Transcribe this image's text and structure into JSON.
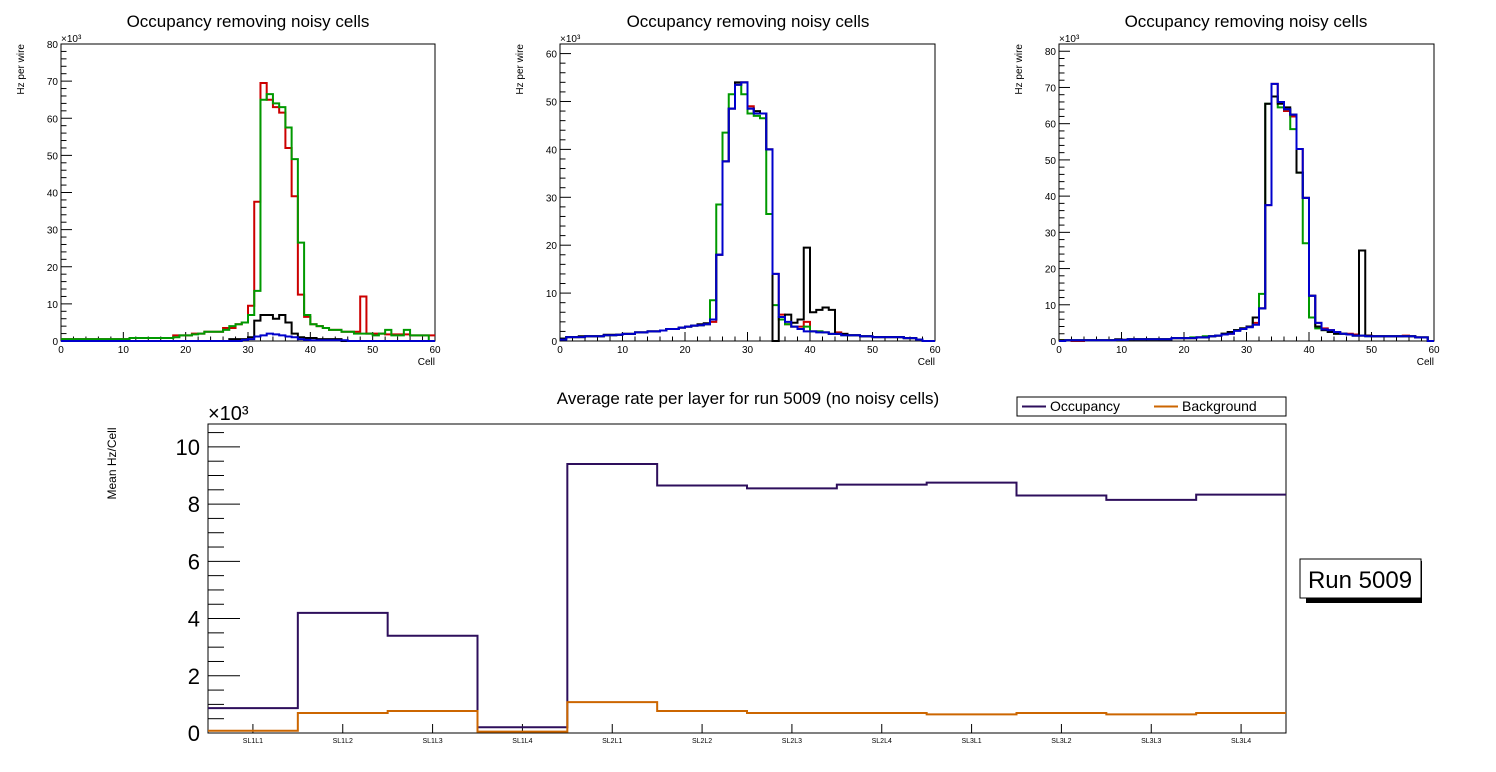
{
  "colors": {
    "red": "#cc0000",
    "green": "#009900",
    "blue": "#0000cc",
    "black": "#000000",
    "occupancy": "#2e0f5c",
    "background": "#cc6600"
  },
  "chart_data": [
    {
      "type": "line",
      "style": "step-histogram",
      "title": "Occupancy removing noisy cells",
      "xlabel": "Cell",
      "ylabel": "Hz per wire",
      "y_multiplier_label": "×10³",
      "xlim": [
        0,
        60
      ],
      "ylim": [
        0,
        80
      ],
      "xticks": [
        "0",
        "10",
        "20",
        "30",
        "40",
        "50",
        "60"
      ],
      "yticks": [
        "0",
        "10",
        "20",
        "30",
        "40",
        "50",
        "60",
        "70",
        "80"
      ],
      "units_note": "values in thousands (x10^3)",
      "series": [
        {
          "name": "red",
          "color": "red",
          "values": [
            0.5,
            0.5,
            0.5,
            0.5,
            0.5,
            0.5,
            0.5,
            0.5,
            0.5,
            0.5,
            0.5,
            0.8,
            0.8,
            0.8,
            0.8,
            0.8,
            0.8,
            0.8,
            1.5,
            1.5,
            1.5,
            2,
            2,
            2.5,
            2.5,
            2.5,
            3.5,
            3.5,
            4.5,
            5,
            9.5,
            37.5,
            69.5,
            65,
            63,
            61.5,
            52,
            39,
            12.5,
            6.5,
            4.5,
            4,
            3.5,
            3,
            3,
            2.5,
            2.5,
            2.5,
            12,
            2,
            2,
            2,
            1.8,
            1.8,
            1.8,
            1.8,
            1.5,
            1.5,
            1.5,
            1.5
          ]
        },
        {
          "name": "green",
          "color": "green",
          "values": [
            0.5,
            0.5,
            0.5,
            0.5,
            0.5,
            0.5,
            0.5,
            0.5,
            0.5,
            0.5,
            0.5,
            0.8,
            0.8,
            0.8,
            0.8,
            0.8,
            0.8,
            0.8,
            1,
            1.5,
            1.5,
            1.8,
            2,
            2.5,
            2.5,
            2.5,
            3,
            4,
            4.5,
            5,
            7,
            13.5,
            65,
            66.5,
            64,
            63,
            57.5,
            49,
            26.5,
            7,
            4.5,
            4,
            3.5,
            3,
            3,
            2.5,
            2.5,
            2,
            2,
            2,
            1.5,
            2,
            3,
            1.5,
            1.5,
            3,
            1.5,
            1.5,
            1.5,
            0
          ]
        },
        {
          "name": "black",
          "color": "black",
          "values": [
            0,
            0,
            0,
            0,
            0,
            0,
            0,
            0,
            0,
            0,
            0,
            0,
            0,
            0,
            0,
            0,
            0,
            0,
            0,
            0,
            0,
            0,
            0,
            0,
            0,
            0,
            0,
            0.5,
            0.5,
            0.5,
            1,
            5.5,
            7,
            7,
            6,
            7,
            5,
            2,
            1,
            0.8,
            0.8,
            0.5,
            0.5,
            0.5,
            0.5,
            0,
            0,
            0,
            0,
            0,
            0,
            0,
            0,
            0,
            0,
            0,
            0,
            0,
            0,
            0
          ]
        },
        {
          "name": "blue",
          "color": "blue",
          "values": [
            0,
            0,
            0,
            0,
            0,
            0,
            0,
            0,
            0,
            0,
            0,
            0,
            0,
            0,
            0,
            0,
            0,
            0,
            0,
            0,
            0,
            0,
            0,
            0,
            0,
            0,
            0,
            0,
            0,
            0.3,
            0.5,
            1.2,
            1.5,
            2,
            1.8,
            1.5,
            1.2,
            1,
            0.5,
            0.3,
            0.2,
            0.2,
            0.2,
            0.2,
            0.2,
            0.2,
            0,
            0,
            0,
            0,
            0,
            0,
            0,
            0,
            0,
            0,
            0,
            0,
            0,
            0
          ]
        }
      ]
    },
    {
      "type": "line",
      "style": "step-histogram",
      "title": "Occupancy removing noisy cells",
      "xlabel": "Cell",
      "ylabel": "Hz per wire",
      "y_multiplier_label": "×10³",
      "xlim": [
        0,
        60
      ],
      "ylim": [
        0,
        62
      ],
      "xticks": [
        "0",
        "10",
        "20",
        "30",
        "40",
        "50",
        "60"
      ],
      "yticks": [
        "0",
        "10",
        "20",
        "30",
        "40",
        "50",
        "60"
      ],
      "units_note": "values in thousands (x10^3)",
      "series": [
        {
          "name": "red",
          "color": "red",
          "values": [
            0.5,
            0.8,
            0.8,
            0.8,
            1,
            1,
            1,
            1.2,
            1.2,
            1.3,
            1.5,
            1.5,
            1.8,
            1.8,
            2,
            2,
            2.2,
            2.5,
            2.5,
            2.8,
            3,
            3.2,
            3.3,
            3.5,
            4,
            18,
            37.5,
            48.5,
            53.5,
            54,
            49,
            47.5,
            47.5,
            40,
            14,
            5.5,
            3.5,
            3,
            3,
            4,
            2,
            2,
            1.8,
            1.5,
            1.8,
            1.5,
            1.2,
            1.2,
            1,
            1,
            0.8,
            0.8,
            0.8,
            0.8,
            0.8,
            0.6,
            0.6,
            0.3,
            0,
            0
          ]
        },
        {
          "name": "green",
          "color": "green",
          "values": [
            0.5,
            0.8,
            0.8,
            0.8,
            1,
            1,
            1,
            1.2,
            1.2,
            1.3,
            1.5,
            1.5,
            1.8,
            1.8,
            2,
            2,
            2.2,
            2.5,
            2.5,
            2.8,
            3,
            3.2,
            3.3,
            3.5,
            8.5,
            28.5,
            43.5,
            51.5,
            53.5,
            51.5,
            47.5,
            47,
            46.5,
            26.5,
            7.5,
            4.5,
            3.5,
            3,
            2.5,
            3,
            2,
            2,
            1.8,
            1.5,
            1.5,
            1.2,
            1.2,
            1.2,
            1,
            1,
            0.8,
            0.8,
            0.8,
            0.8,
            0.8,
            0.6,
            0.6,
            0.3,
            0,
            0
          ]
        },
        {
          "name": "black",
          "color": "black",
          "values": [
            0.5,
            0.8,
            0.8,
            1,
            1,
            1,
            1,
            1.3,
            1.3,
            1.3,
            1.5,
            1.5,
            1.8,
            1.8,
            2,
            2,
            2.2,
            2.5,
            2.5,
            2.8,
            3,
            3.2,
            3.5,
            3.7,
            4.5,
            18,
            37.5,
            48.5,
            54,
            54,
            48.5,
            48,
            47.5,
            40,
            0,
            5,
            5.5,
            3.8,
            4.5,
            19.5,
            6,
            6.5,
            7,
            6.5,
            1.5,
            1.5,
            1.2,
            1.2,
            1,
            1,
            0.8,
            0.8,
            0.8,
            0.8,
            0.8,
            0.6,
            0.6,
            0.3,
            0,
            0
          ]
        },
        {
          "name": "blue",
          "color": "blue",
          "values": [
            0.3,
            0.8,
            0.8,
            0.8,
            1,
            1,
            1,
            1.2,
            1.2,
            1.3,
            1.5,
            1.5,
            1.8,
            1.8,
            2,
            2,
            2.2,
            2.5,
            2.5,
            2.8,
            3,
            3.2,
            3.3,
            3.5,
            4.5,
            18,
            37.5,
            48.5,
            53.5,
            54,
            48.5,
            47.5,
            47.5,
            40,
            14,
            5,
            4,
            3,
            2.5,
            2,
            2,
            1.8,
            1.8,
            1.5,
            1.5,
            1.2,
            1.2,
            1.2,
            1,
            1,
            0.8,
            0.8,
            0.8,
            0.8,
            0.8,
            0.6,
            0.6,
            0.3,
            0,
            0
          ]
        }
      ]
    },
    {
      "type": "line",
      "style": "step-histogram",
      "title": "Occupancy removing noisy cells",
      "xlabel": "Cell",
      "ylabel": "Hz per wire",
      "y_multiplier_label": "×10³",
      "xlim": [
        0,
        60
      ],
      "ylim": [
        0,
        82
      ],
      "xticks": [
        "0",
        "10",
        "20",
        "30",
        "40",
        "50",
        "60"
      ],
      "yticks": [
        "0",
        "10",
        "20",
        "30",
        "40",
        "50",
        "60",
        "70",
        "80"
      ],
      "units_note": "values in thousands (x10^3)",
      "series": [
        {
          "name": "red",
          "color": "red",
          "values": [
            0.2,
            0.2,
            0,
            0,
            0.2,
            0.2,
            0.2,
            0.2,
            0.2,
            0.3,
            0.3,
            0.5,
            0.5,
            0.5,
            0.5,
            0.5,
            0.5,
            0.5,
            0.8,
            0.8,
            0.8,
            0.8,
            1,
            1,
            1.3,
            1.5,
            2,
            2,
            3,
            3.5,
            4,
            5,
            9,
            37.5,
            71,
            66,
            63.5,
            62,
            53,
            39.5,
            12.5,
            5,
            3.5,
            3,
            2.5,
            2,
            2,
            1.8,
            1.5,
            1.5,
            1.3,
            1.3,
            1.3,
            1.3,
            1.3,
            1.5,
            1.3,
            1,
            1,
            0
          ]
        },
        {
          "name": "green",
          "color": "green",
          "values": [
            0.2,
            0.2,
            0.2,
            0.2,
            0.2,
            0.2,
            0.2,
            0.2,
            0.2,
            0.3,
            0.3,
            0.5,
            0.5,
            0.5,
            0.5,
            0.5,
            0.5,
            0.5,
            0.8,
            0.8,
            0.8,
            1,
            1,
            1.3,
            1.3,
            1.5,
            2,
            2.5,
            3,
            3.5,
            4,
            6.5,
            13,
            65.5,
            67.5,
            64.5,
            64,
            58.5,
            46.5,
            27,
            6.5,
            3.5,
            3,
            2.5,
            2,
            2,
            1.8,
            1.5,
            1.5,
            1.3,
            1.3,
            1.3,
            1.3,
            1.3,
            1.3,
            1.3,
            1.3,
            1,
            1,
            0
          ]
        },
        {
          "name": "black",
          "color": "black",
          "values": [
            0.2,
            0.2,
            0.2,
            0.2,
            0.2,
            0.2,
            0.2,
            0.2,
            0.2,
            0.5,
            0.3,
            0.5,
            0.5,
            0.5,
            0.5,
            0.5,
            0.5,
            0.5,
            0.8,
            0.8,
            0.8,
            0.8,
            1,
            1,
            1.3,
            1.5,
            2,
            2.5,
            3,
            3.5,
            4,
            6.5,
            9,
            65.5,
            67.5,
            65.5,
            64.5,
            62.5,
            46.5,
            39.5,
            12.5,
            4,
            3,
            2.5,
            2,
            2,
            1.8,
            1.5,
            25,
            1.5,
            1.3,
            1.3,
            1.3,
            1.3,
            1.3,
            1.3,
            1.3,
            1,
            1,
            0
          ]
        },
        {
          "name": "blue",
          "color": "blue",
          "values": [
            0,
            0.2,
            0.2,
            0.2,
            0.2,
            0.2,
            0.2,
            0.2,
            0.2,
            0.3,
            0.3,
            0.5,
            0.5,
            0.5,
            0.5,
            0.5,
            0.5,
            0.5,
            0.8,
            0.8,
            0.8,
            0.8,
            1,
            1,
            1.3,
            1.5,
            1.8,
            2,
            2.8,
            3.3,
            3.8,
            4.5,
            9,
            37.5,
            71,
            66,
            64,
            62.5,
            53,
            39.5,
            12.5,
            5,
            3.2,
            3,
            2.5,
            2,
            1.8,
            1.5,
            1.5,
            1.3,
            1.3,
            1.3,
            1.3,
            1.3,
            1.3,
            1.3,
            1.3,
            1,
            1,
            0
          ]
        }
      ]
    },
    {
      "type": "line",
      "style": "step-histogram",
      "title": "Average rate per layer for run 5009 (no noisy cells)",
      "xlabel": "",
      "ylabel": "Mean Hz/Cell",
      "y_multiplier_label": "×10³",
      "categories": [
        "SL1L1",
        "SL1L2",
        "SL1L3",
        "SL1L4",
        "SL2L1",
        "SL2L2",
        "SL2L3",
        "SL2L4",
        "SL3L1",
        "SL3L2",
        "SL3L3",
        "SL3L4"
      ],
      "ylim": [
        0,
        10.8
      ],
      "yticks": [
        "0",
        "2",
        "4",
        "6",
        "8",
        "10"
      ],
      "legend": {
        "placement": "top-right",
        "entries": [
          "Occupancy",
          "Background"
        ]
      },
      "annotation": "Run 5009",
      "units_note": "values in thousands (x10^3)",
      "series": [
        {
          "name": "Occupancy",
          "color": "occupancy",
          "values": [
            0.87,
            4.2,
            3.4,
            0.2,
            9.4,
            8.65,
            8.55,
            8.68,
            8.75,
            8.3,
            8.15,
            8.33
          ]
        },
        {
          "name": "Background",
          "color": "background",
          "values": [
            0.08,
            0.7,
            0.77,
            0.05,
            1.08,
            0.77,
            0.7,
            0.7,
            0.65,
            0.7,
            0.65,
            0.7
          ]
        }
      ]
    }
  ]
}
